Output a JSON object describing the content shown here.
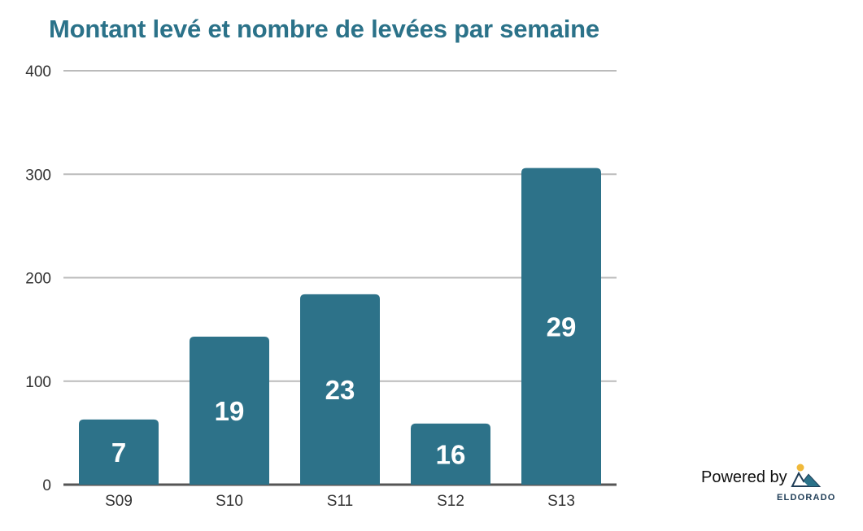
{
  "chart_data": {
    "type": "bar",
    "title": "Montant levé et nombre de levées par semaine",
    "categories": [
      "S09",
      "S10",
      "S11",
      "S12",
      "S13"
    ],
    "values": [
      63,
      143,
      184,
      59,
      306
    ],
    "data_labels": [
      "7",
      "19",
      "23",
      "16",
      "29"
    ],
    "yticks": [
      "0",
      "100",
      "200",
      "300",
      "400"
    ],
    "ylim": [
      0,
      400
    ],
    "xlabel": "",
    "ylabel": "",
    "grid": true,
    "bar_color": "#2d7289"
  },
  "footer": {
    "powered_by": "Powered by",
    "brand": "ELDORADO"
  }
}
